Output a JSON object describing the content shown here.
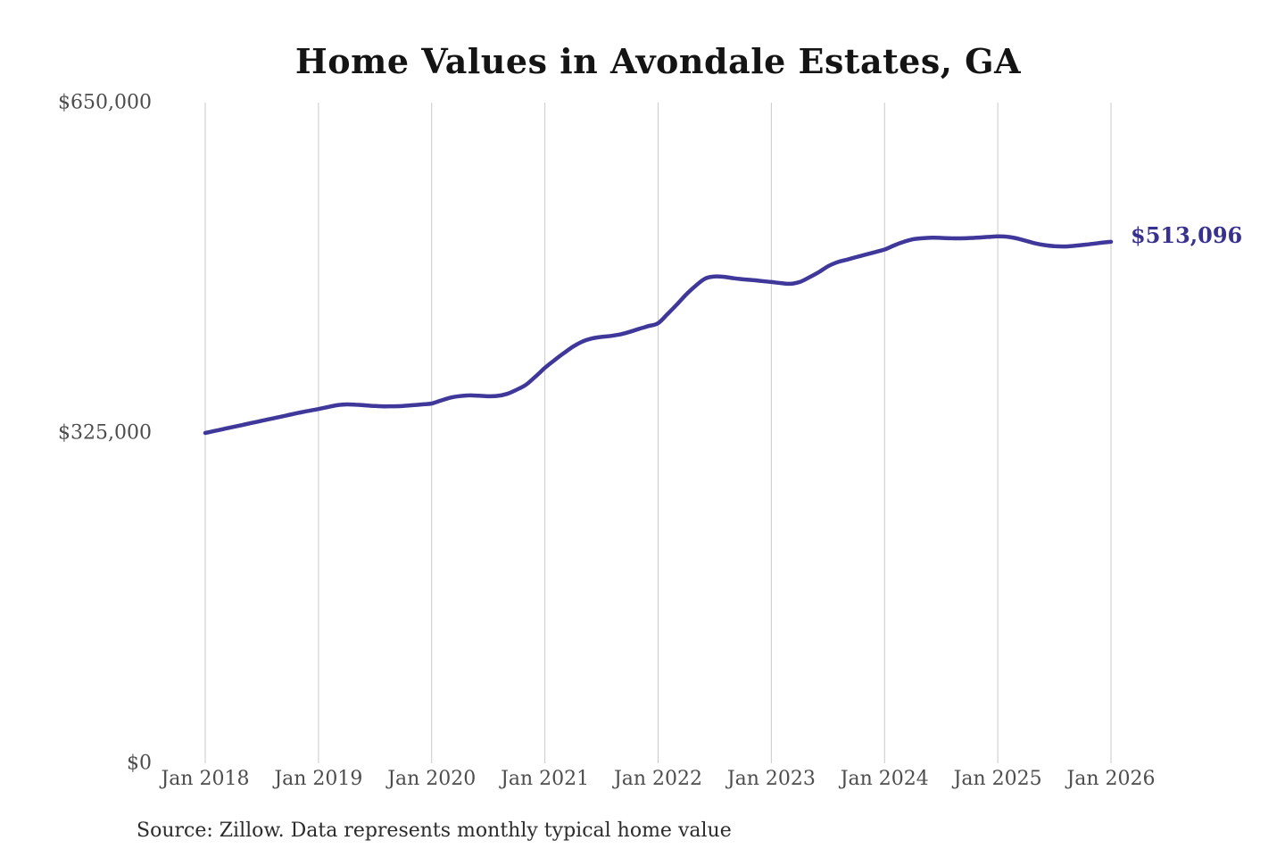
{
  "accent_colors": {
    "line": "#3f389a",
    "end_label": "#39318f",
    "gridline": "#c9c9c9",
    "axis_text": "#4d4d4d",
    "title_text": "#141414"
  },
  "chart_data": {
    "type": "line",
    "title": "Home Values in Avondale Estates, GA",
    "source_note": "Source: Zillow. Data represents monthly typical home value",
    "series_name": "Monthly typical home value",
    "interval": "monthly",
    "x_start": "Jan 2018",
    "x_end": "Jan 2026",
    "x_ticks": [
      "Jan 2018",
      "Jan 2019",
      "Jan 2020",
      "Jan 2021",
      "Jan 2022",
      "Jan 2023",
      "Jan 2024",
      "Jan 2025",
      "Jan 2026"
    ],
    "y_ticks": [
      {
        "label": "$0",
        "value": 0
      },
      {
        "label": "$325,000",
        "value": 325000
      },
      {
        "label": "$650,000",
        "value": 650000
      }
    ],
    "ylim": [
      0,
      650000
    ],
    "grid": "vertical-only",
    "legend": "none",
    "end_label": "$513,096",
    "end_value": 513096,
    "values": [
      325000,
      327000,
      329000,
      331000,
      333000,
      335000,
      337000,
      339000,
      341000,
      343000,
      345000,
      346800,
      348500,
      350500,
      352300,
      353100,
      352800,
      352100,
      351500,
      351200,
      351300,
      351600,
      352300,
      353100,
      354000,
      357000,
      359800,
      361300,
      362000,
      361600,
      361100,
      361500,
      363500,
      367500,
      372500,
      380500,
      389000,
      396500,
      403500,
      410000,
      415000,
      418000,
      419500,
      420500,
      422000,
      424500,
      427500,
      430200,
      433000,
      442000,
      451500,
      461500,
      470000,
      477000,
      479000,
      478600,
      477200,
      476200,
      475500,
      474500,
      473500,
      472500,
      471800,
      473500,
      478000,
      483000,
      489000,
      493000,
      495500,
      498000,
      500500,
      503000,
      505500,
      509500,
      513000,
      515500,
      516600,
      517100,
      516900,
      516600,
      516500,
      516800,
      517300,
      517900,
      518500,
      518100,
      516500,
      514000,
      511500,
      509800,
      508800,
      508500,
      509000,
      510000,
      511000,
      512200,
      513096
    ]
  }
}
